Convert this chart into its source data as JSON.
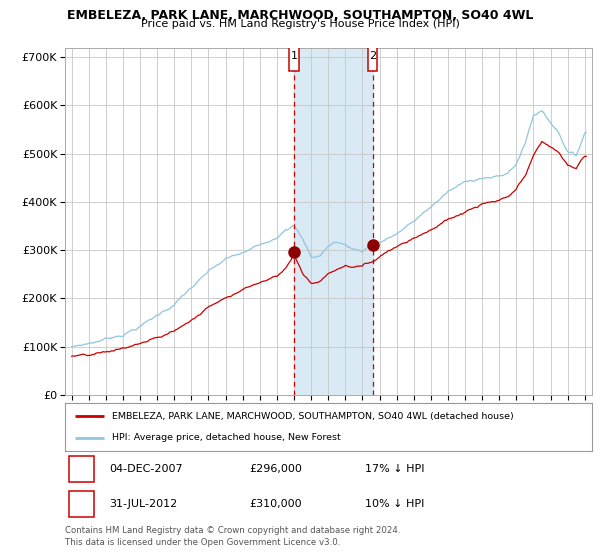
{
  "title": "EMBELEZA, PARK LANE, MARCHWOOD, SOUTHAMPTON, SO40 4WL",
  "subtitle": "Price paid vs. HM Land Registry's House Price Index (HPI)",
  "legend_property": "EMBELEZA, PARK LANE, MARCHWOOD, SOUTHAMPTON, SO40 4WL (detached house)",
  "legend_hpi": "HPI: Average price, detached house, New Forest",
  "transaction1_date": "04-DEC-2007",
  "transaction1_price": 296000,
  "transaction1_label": "17% ↓ HPI",
  "transaction2_date": "31-JUL-2012",
  "transaction2_price": 310000,
  "transaction2_label": "10% ↓ HPI",
  "footnote": "Contains HM Land Registry data © Crown copyright and database right 2024.\nThis data is licensed under the Open Government Licence v3.0.",
  "property_color": "#cc0000",
  "hpi_color": "#92c5de",
  "dot_color": "#8b0000",
  "background_color": "#ffffff",
  "grid_color": "#c8c8c8",
  "highlight_color": "#daeaf5",
  "transaction1_x": 2008.0,
  "transaction2_x": 2012.6,
  "ylim": [
    0,
    720000
  ],
  "xlim_start": 1994.6,
  "xlim_end": 2025.4
}
